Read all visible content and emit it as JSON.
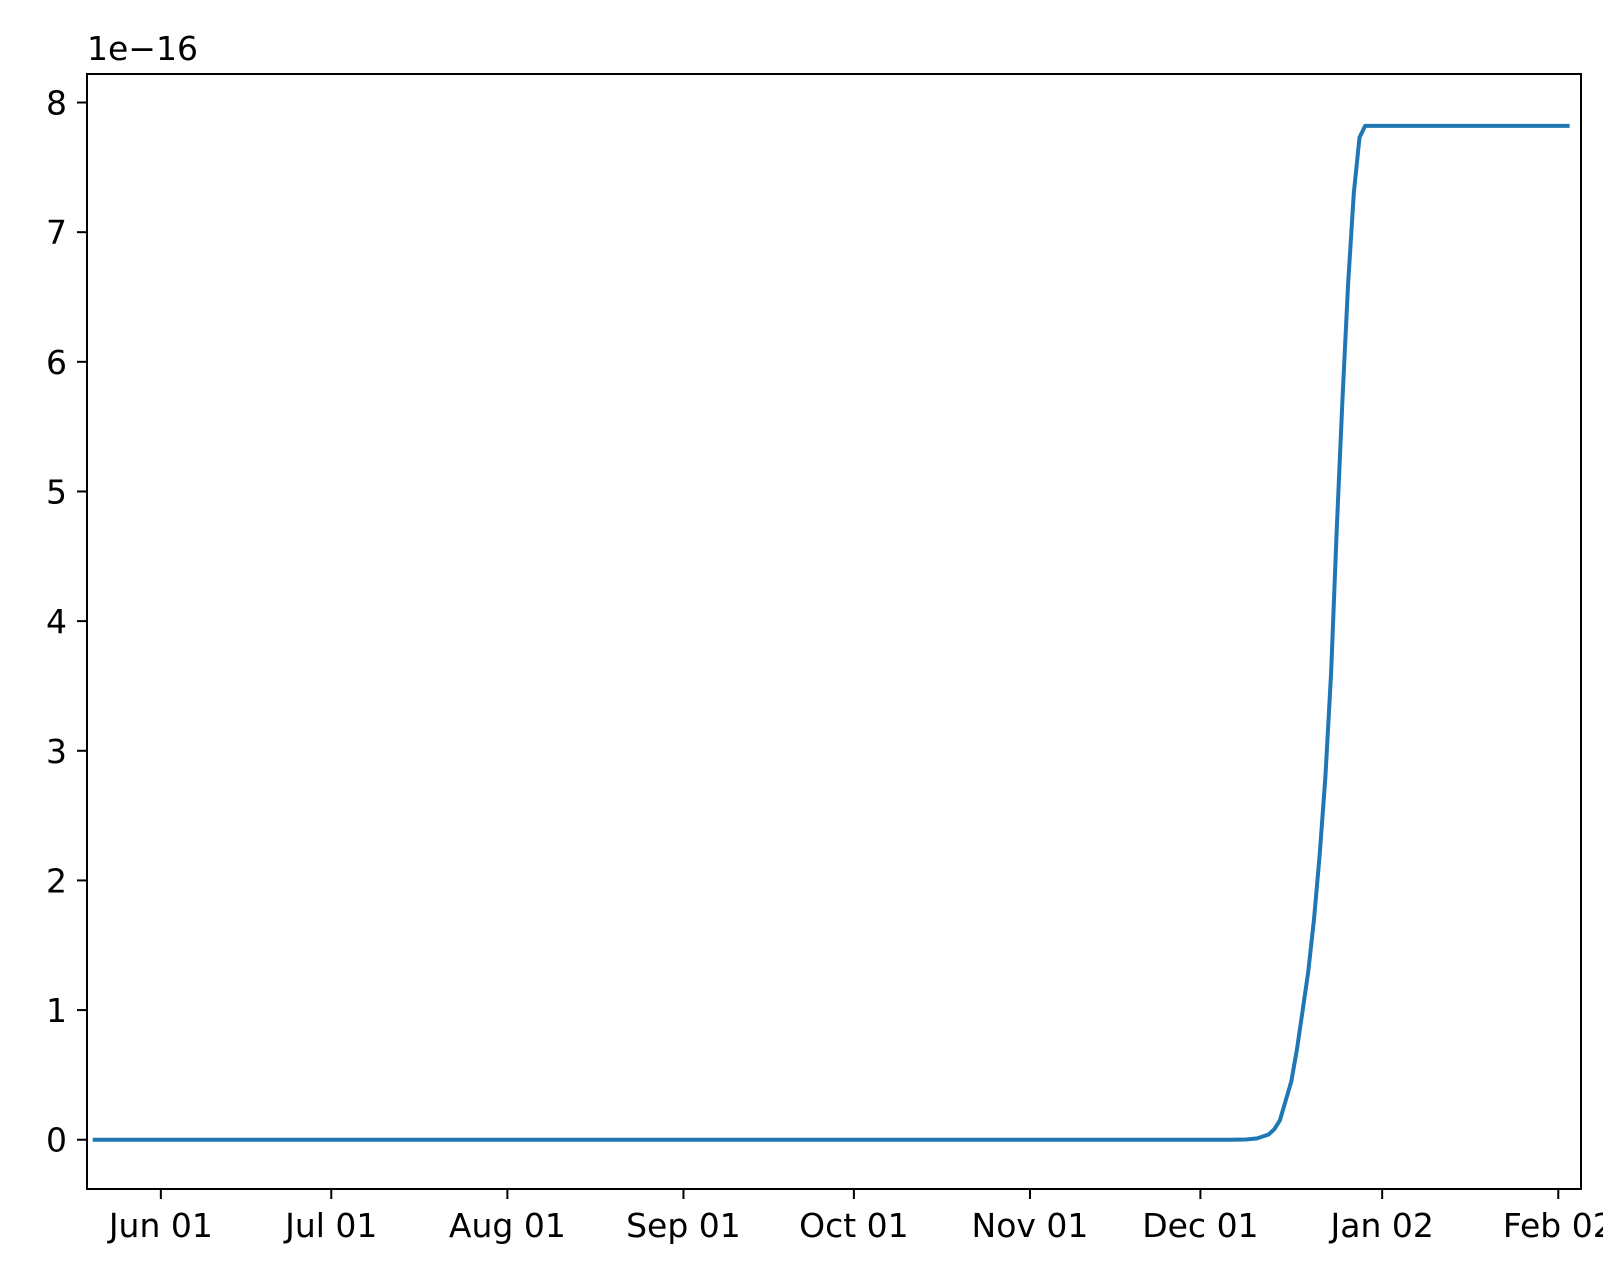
{
  "chart_data": {
    "type": "line",
    "title": "",
    "xlabel": "",
    "ylabel": "",
    "y_offset_label": "1e−16",
    "xlim": [
      "2022-05-19",
      "2023-02-06"
    ],
    "ylim": [
      -0.38,
      8.22
    ],
    "x_ticks": [
      {
        "date": "2022-06-01",
        "label": "Jun 01"
      },
      {
        "date": "2022-07-01",
        "label": "Jul 01"
      },
      {
        "date": "2022-08-01",
        "label": "Aug 01"
      },
      {
        "date": "2022-09-01",
        "label": "Sep 01"
      },
      {
        "date": "2022-10-01",
        "label": "Oct 01"
      },
      {
        "date": "2022-11-01",
        "label": "Nov 01"
      },
      {
        "date": "2022-12-01",
        "label": "Dec 01"
      },
      {
        "date": "2023-01-02",
        "label": "Jan 02"
      },
      {
        "date": "2023-02-02",
        "label": "Feb 02"
      }
    ],
    "y_ticks": [
      {
        "value": 0,
        "label": "0"
      },
      {
        "value": 1,
        "label": "1"
      },
      {
        "value": 2,
        "label": "2"
      },
      {
        "value": 3,
        "label": "3"
      },
      {
        "value": 4,
        "label": "4"
      },
      {
        "value": 5,
        "label": "5"
      },
      {
        "value": 6,
        "label": "6"
      },
      {
        "value": 7,
        "label": "7"
      },
      {
        "value": 8,
        "label": "8"
      }
    ],
    "grid": false,
    "series": [
      {
        "color": "#1f77b4",
        "x": [
          "2022-05-20",
          "2022-10-01",
          "2022-12-06",
          "2022-12-09",
          "2022-12-11",
          "2022-12-13",
          "2022-12-14",
          "2022-12-15",
          "2022-12-16",
          "2022-12-17",
          "2022-12-18",
          "2022-12-19",
          "2022-12-20",
          "2022-12-21",
          "2022-12-22",
          "2022-12-23",
          "2022-12-24",
          "2022-12-25",
          "2022-12-26",
          "2022-12-27",
          "2022-12-28",
          "2022-12-29",
          "2022-12-30",
          "2022-12-31",
          "2023-01-01",
          "2023-02-04"
        ],
        "values": [
          0,
          0,
          0,
          0.002,
          0.01,
          0.04,
          0.08,
          0.15,
          0.3,
          0.45,
          0.7,
          1.0,
          1.3,
          1.7,
          2.2,
          2.8,
          3.6,
          4.7,
          5.7,
          6.6,
          7.3,
          7.73,
          7.82,
          7.82,
          7.82,
          7.82
        ]
      }
    ]
  }
}
